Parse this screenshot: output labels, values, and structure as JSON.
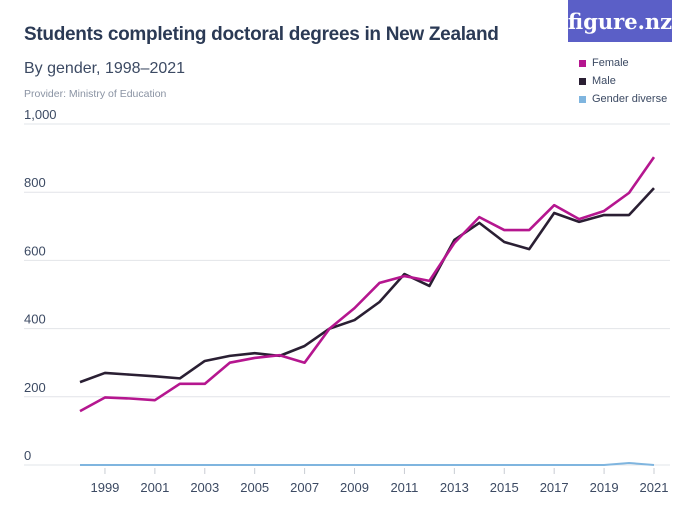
{
  "header": {
    "title": "Students completing doctoral degrees in New Zealand",
    "subtitle": "By gender, 1998–2021",
    "provider": "Provider: Ministry of Education",
    "logo": "figure.nz"
  },
  "colors": {
    "Female": "#b5168f",
    "Male": "#2a1f33",
    "Gender diverse": "#7fb5df"
  },
  "chart_data": {
    "type": "line",
    "title": "Students completing doctoral degrees in New Zealand",
    "subtitle": "By gender, 1998–2021",
    "xlabel": "",
    "ylabel": "",
    "ylim": [
      0,
      1000
    ],
    "yticks": [
      "0",
      "200",
      "400",
      "600",
      "800",
      "1,000"
    ],
    "xticks": [
      "1999",
      "2001",
      "2003",
      "2005",
      "2007",
      "2009",
      "2011",
      "2013",
      "2015",
      "2017",
      "2019",
      "2021"
    ],
    "grid": true,
    "legend": "top-right",
    "x": [
      1998,
      1999,
      2000,
      2001,
      2002,
      2003,
      2004,
      2005,
      2006,
      2007,
      2008,
      2009,
      2010,
      2011,
      2012,
      2013,
      2014,
      2015,
      2016,
      2017,
      2018,
      2019,
      2020,
      2021
    ],
    "series": [
      {
        "name": "Female",
        "values": [
          158,
          198,
          195,
          190,
          238,
          238,
          300,
          314,
          322,
          300,
          400,
          460,
          534,
          554,
          540,
          651,
          727,
          689,
          689,
          762,
          721,
          745,
          798,
          903
        ]
      },
      {
        "name": "Male",
        "values": [
          243,
          270,
          265,
          260,
          254,
          305,
          320,
          328,
          320,
          349,
          400,
          425,
          478,
          560,
          525,
          660,
          710,
          654,
          633,
          739,
          713,
          733,
          733,
          812
        ]
      },
      {
        "name": "Gender diverse",
        "values": [
          0,
          0,
          0,
          0,
          0,
          0,
          0,
          0,
          0,
          0,
          0,
          0,
          0,
          0,
          0,
          0,
          0,
          0,
          0,
          0,
          0,
          0,
          6,
          0
        ]
      }
    ]
  }
}
